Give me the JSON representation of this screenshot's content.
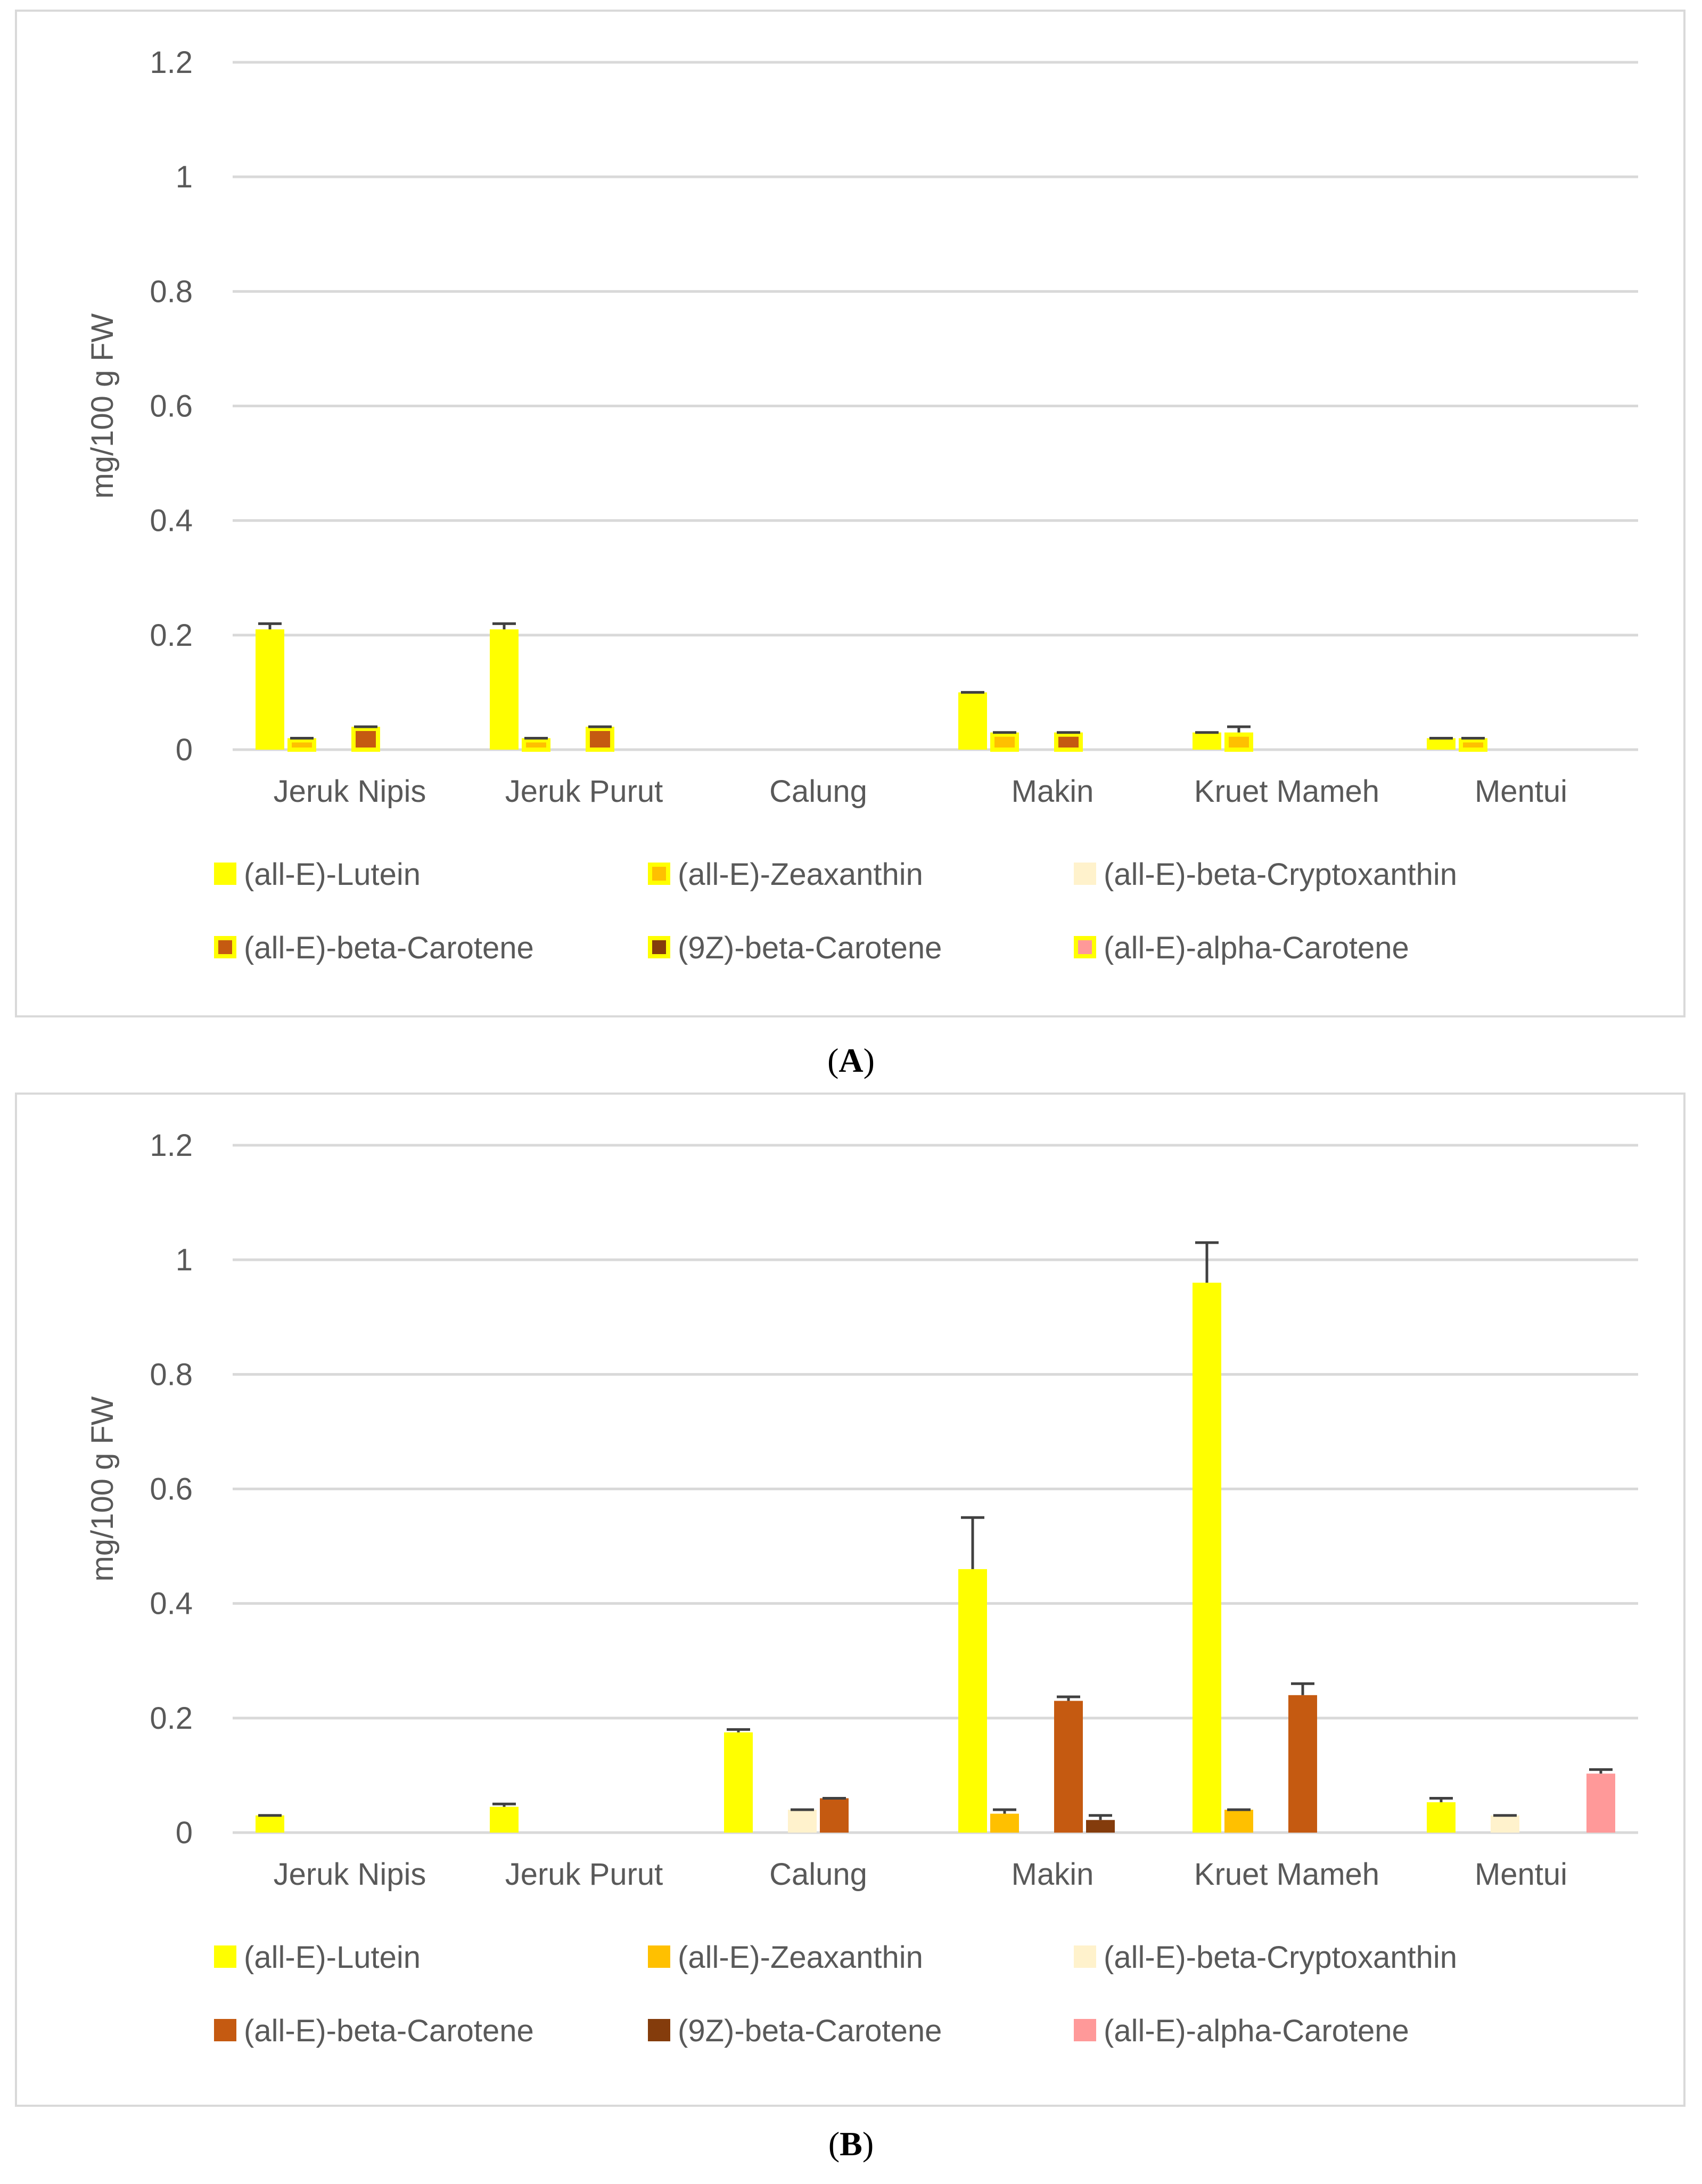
{
  "series_names": [
    "(all-E)-Lutein",
    "(all-E)-Zeaxanthin",
    "(all-E)-beta-Cryptoxanthin",
    "(all-E)-beta-Carotene",
    "(9Z)-beta-Carotene",
    "(all-E)-alpha-Carotene"
  ],
  "colors": {
    "lutein": "#ffff00",
    "zeaxanthin": "#ffc000",
    "cryptoxanthin": "#fff2cc",
    "beta_carotene": "#c55a11",
    "z9_beta_carotene": "#843c0c",
    "alpha_carotene": "#ff9999",
    "error": "#404040",
    "grid": "#d9d9d9"
  },
  "chart_data": [
    {
      "panel": "A",
      "caption_letter": "A",
      "type": "bar",
      "title": "",
      "xlabel": "",
      "ylabel": "mg/100 g FW",
      "ylim": [
        0,
        1.2
      ],
      "yticks": [
        0,
        0.2,
        0.4,
        0.6,
        0.8,
        1,
        1.2
      ],
      "ytick_labels": [
        "0",
        "0.2",
        "0.4",
        "0.6",
        "0.8",
        "1",
        "1.2"
      ],
      "grid": true,
      "legend_position": "bottom",
      "legend_style": "outlined",
      "categories": [
        "Jeruk Nipis",
        "Jeruk Purut",
        "Calung",
        "Makin",
        "Kruet Mameh",
        "Mentui"
      ],
      "series": [
        {
          "name": "(all-E)-Lutein",
          "values": [
            0.21,
            0.21,
            0,
            0.1,
            0.03,
            0.02
          ],
          "errors": [
            0.01,
            0.01,
            0,
            0,
            0,
            0
          ]
        },
        {
          "name": "(all-E)-Zeaxanthin",
          "values": [
            0.02,
            0.02,
            0,
            0.03,
            0.03,
            0.02
          ],
          "errors": [
            0,
            0,
            0,
            0,
            0.01,
            0
          ]
        },
        {
          "name": "(all-E)-beta-Cryptoxanthin",
          "values": [
            0,
            0,
            0,
            0,
            0,
            0
          ],
          "errors": [
            0,
            0,
            0,
            0,
            0,
            0
          ]
        },
        {
          "name": "(all-E)-beta-Carotene",
          "values": [
            0.04,
            0.04,
            0,
            0.03,
            0,
            0
          ],
          "errors": [
            0,
            0,
            0,
            0,
            0,
            0
          ]
        },
        {
          "name": "(9Z)-beta-Carotene",
          "values": [
            0,
            0,
            0,
            0,
            0,
            0
          ],
          "errors": [
            0,
            0,
            0,
            0,
            0,
            0
          ]
        },
        {
          "name": "(all-E)-alpha-Carotene",
          "values": [
            0,
            0,
            0,
            0,
            0,
            0
          ],
          "errors": [
            0,
            0,
            0,
            0,
            0,
            0
          ]
        }
      ]
    },
    {
      "panel": "B",
      "caption_letter": "B",
      "type": "bar",
      "title": "",
      "xlabel": "",
      "ylabel": "mg/100 g FW",
      "ylim": [
        0,
        1.2
      ],
      "yticks": [
        0,
        0.2,
        0.4,
        0.6,
        0.8,
        1,
        1.2
      ],
      "ytick_labels": [
        "0",
        "0.2",
        "0.4",
        "0.6",
        "0.8",
        "1",
        "1.2"
      ],
      "grid": true,
      "legend_position": "bottom",
      "legend_style": "solid",
      "categories": [
        "Jeruk Nipis",
        "Jeruk Purut",
        "Calung",
        "Makin",
        "Kruet Mameh",
        "Mentui"
      ],
      "series": [
        {
          "name": "(all-E)-Lutein",
          "values": [
            0.03,
            0.045,
            0.175,
            0.46,
            0.96,
            0.053
          ],
          "errors": [
            0,
            0.005,
            0.005,
            0.09,
            0.07,
            0.007
          ]
        },
        {
          "name": "(all-E)-Zeaxanthin",
          "values": [
            0,
            0,
            0,
            0.033,
            0.04,
            0
          ],
          "errors": [
            0,
            0,
            0,
            0.007,
            0,
            0
          ]
        },
        {
          "name": "(all-E)-beta-Cryptoxanthin",
          "values": [
            0,
            0,
            0.04,
            0,
            0,
            0.03
          ],
          "errors": [
            0,
            0,
            0,
            0,
            0,
            0
          ]
        },
        {
          "name": "(all-E)-beta-Carotene",
          "values": [
            0,
            0,
            0.06,
            0.23,
            0.24,
            0
          ],
          "errors": [
            0,
            0,
            0,
            0.007,
            0.02,
            0
          ]
        },
        {
          "name": "(9Z)-beta-Carotene",
          "values": [
            0,
            0,
            0,
            0.022,
            0,
            0
          ],
          "errors": [
            0,
            0,
            0,
            0.008,
            0,
            0
          ]
        },
        {
          "name": "(all-E)-alpha-Carotene",
          "values": [
            0,
            0,
            0,
            0,
            0,
            0.103
          ],
          "errors": [
            0,
            0,
            0,
            0,
            0,
            0.007
          ]
        }
      ]
    }
  ]
}
